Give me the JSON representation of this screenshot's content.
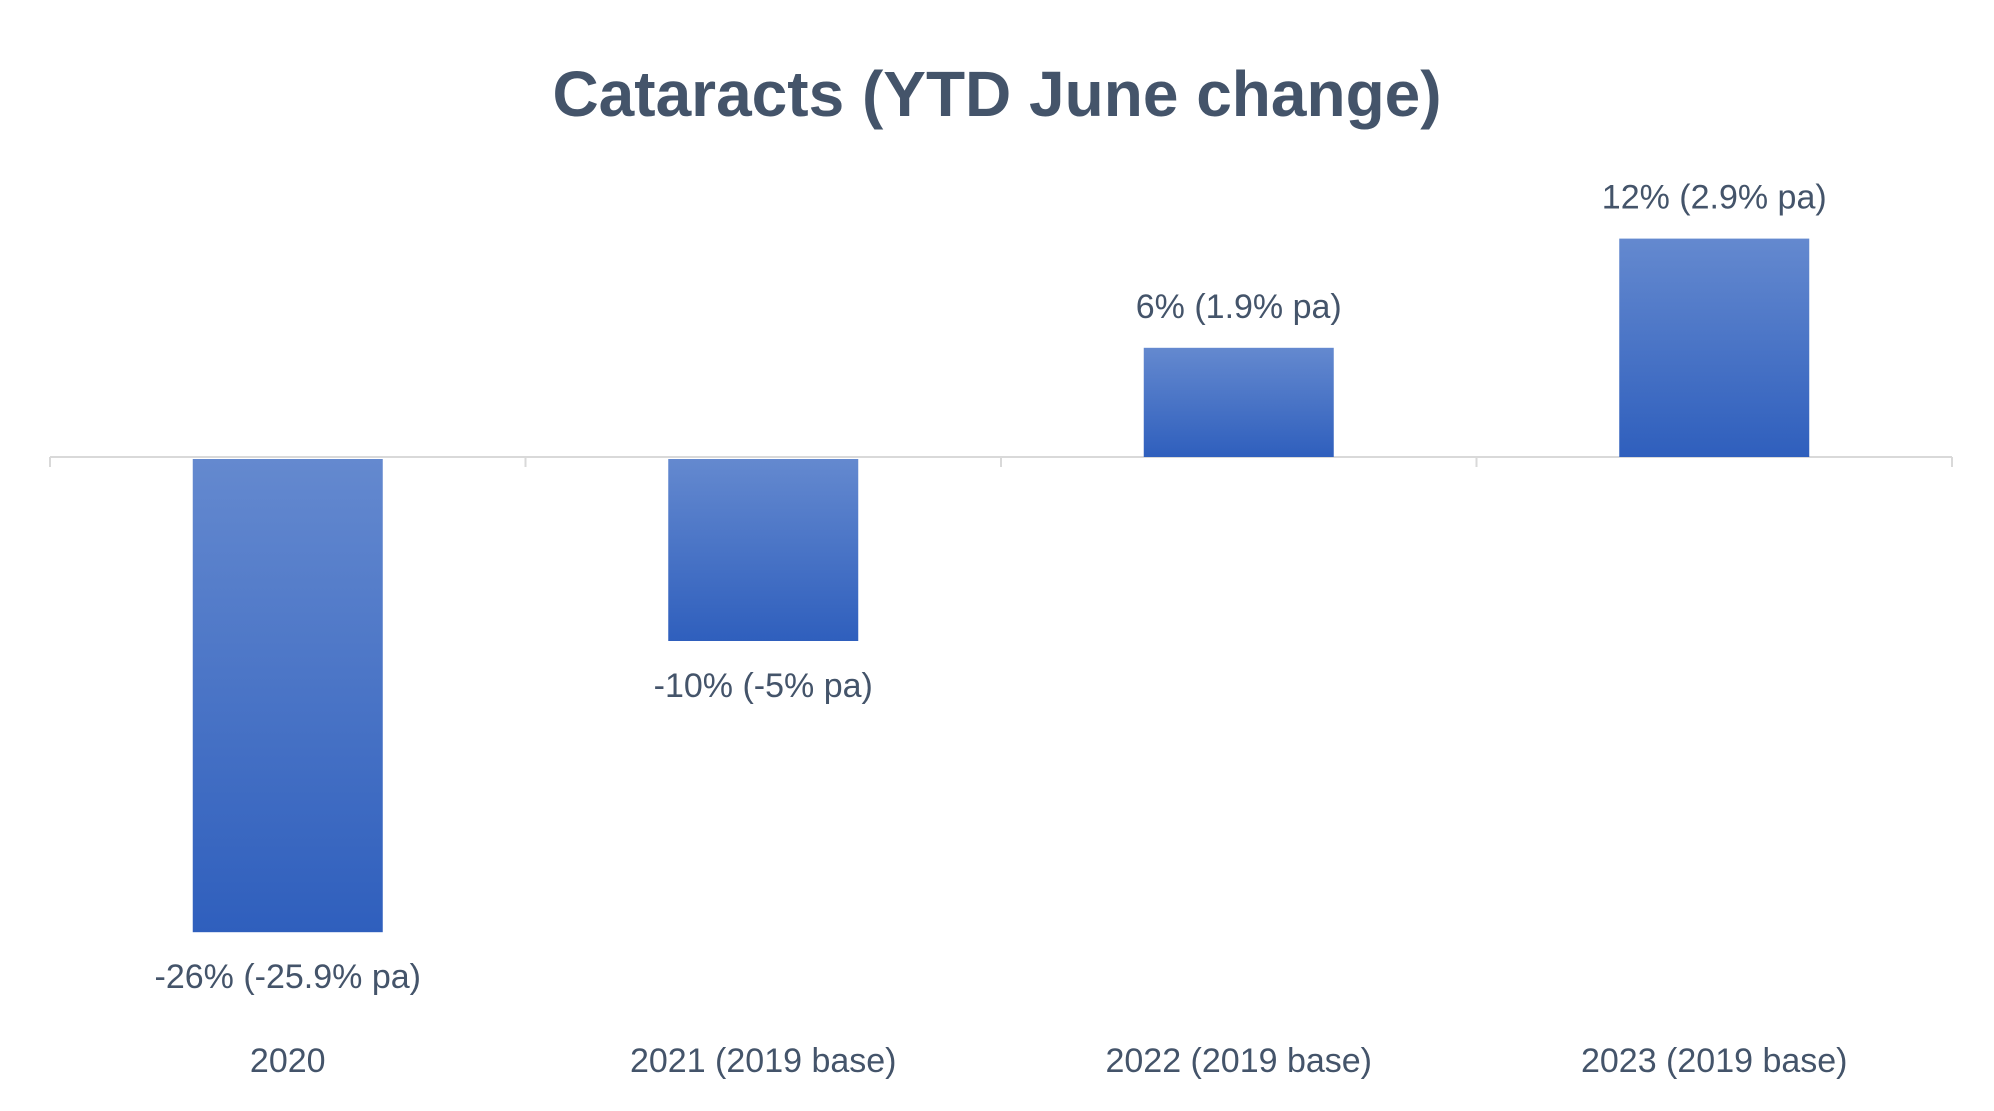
{
  "chart_data": {
    "type": "bar",
    "title": "Cataracts (YTD June change)",
    "xlabel": "",
    "ylabel": "",
    "categories": [
      "2020",
      "2021 (2019 base)",
      "2022 (2019 base)",
      "2023 (2019 base)"
    ],
    "series": [
      {
        "values": [
          -26,
          -10,
          6,
          12
        ],
        "data_labels": [
          "-26% (-25.9% pa)",
          "-10% (-5% pa)",
          "6% (1.9% pa)",
          "12% (2.9% pa)"
        ]
      }
    ],
    "ylim": [
      -26,
      12
    ],
    "grid": false,
    "legend": "none",
    "colors": {
      "bar_top": "#6489cf",
      "bar_bottom": "#2f5fbd",
      "text": "#44546a",
      "axis": "#d9d9d9"
    }
  }
}
